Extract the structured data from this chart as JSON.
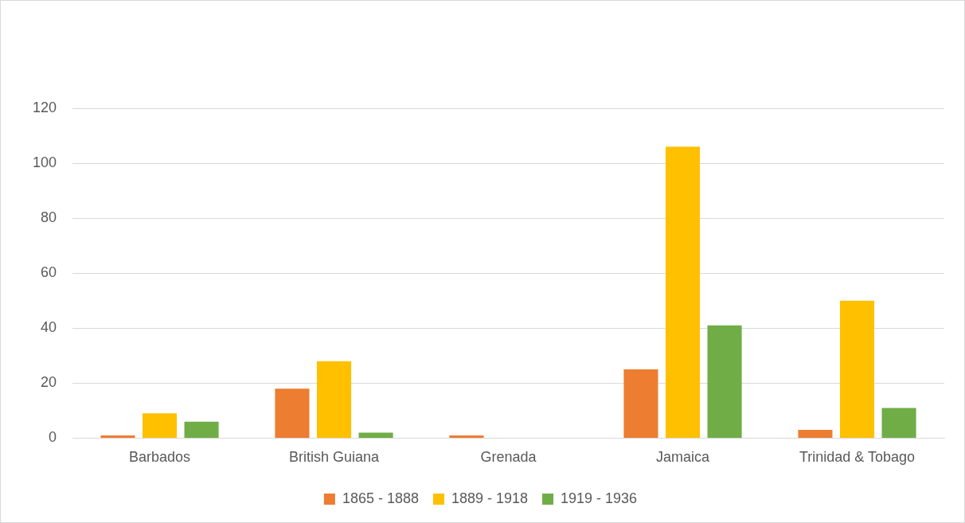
{
  "chart_data": {
    "type": "bar",
    "categories": [
      "Barbados",
      "British Guiana",
      "Grenada",
      "Jamaica",
      "Trinidad & Tobago"
    ],
    "series": [
      {
        "name": "1865 - 1888",
        "color": "#ed7d31",
        "values": [
          1,
          18,
          1,
          25,
          3
        ]
      },
      {
        "name": "1889 - 1918",
        "color": "#ffc000",
        "values": [
          9,
          28,
          0,
          106,
          50
        ]
      },
      {
        "name": "1919 - 1936",
        "color": "#70ad47",
        "values": [
          6,
          2,
          0,
          41,
          11
        ]
      }
    ],
    "ylim": [
      0,
      120
    ],
    "yticks": [
      0,
      20,
      40,
      60,
      80,
      100,
      120
    ],
    "grid": "y",
    "legend": "bottom"
  }
}
